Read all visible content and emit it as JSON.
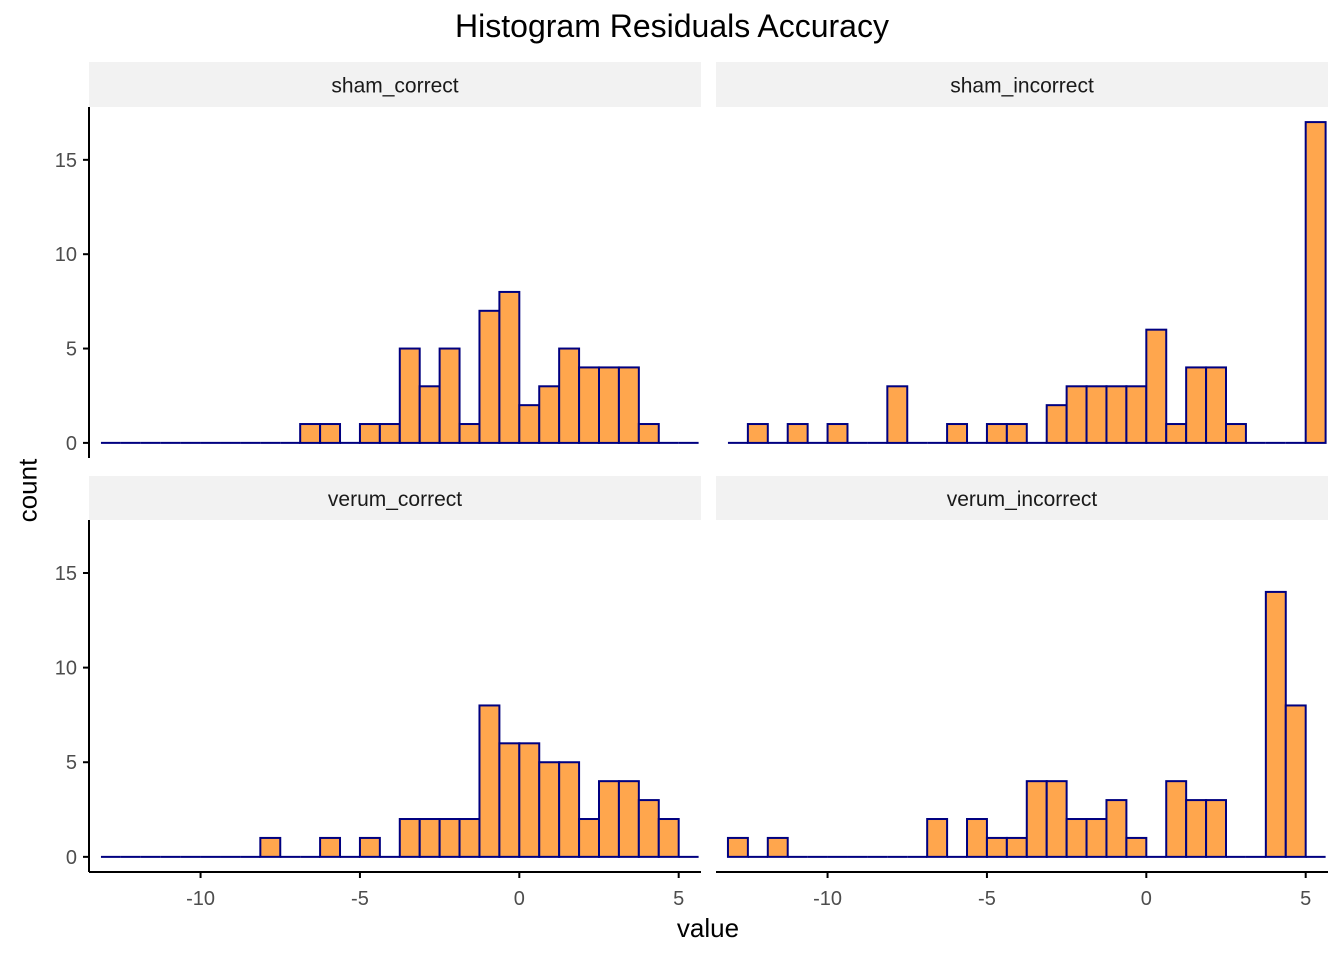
{
  "chart_data": {
    "type": "bar",
    "title": "Histogram Residuals Accuracy",
    "xlabel": "value",
    "ylabel": "count",
    "xlim": [
      -13.5,
      5.7
    ],
    "ylim": [
      -0.8,
      17.8
    ],
    "x_ticks": [
      -10,
      -5,
      0,
      5
    ],
    "y_ticks": [
      0,
      5,
      10,
      15
    ],
    "bin_width": 0.625,
    "bin_centers": [
      -12.8125,
      -12.1875,
      -11.5625,
      -10.9375,
      -10.3125,
      -9.6875,
      -9.0625,
      -8.4375,
      -7.8125,
      -7.1875,
      -6.5625,
      -5.9375,
      -5.3125,
      -4.6875,
      -4.0625,
      -3.4375,
      -2.8125,
      -2.1875,
      -1.5625,
      -0.9375,
      -0.3125,
      0.3125,
      0.9375,
      1.5625,
      2.1875,
      2.8125,
      3.4375,
      4.0625,
      4.6875,
      5.3125
    ],
    "colors": {
      "bar_fill": "#FFA64D",
      "bar_stroke": "#000080",
      "strip_bg": "#F2F2F2",
      "axis": "#000000",
      "tick_text": "#4D4D4D"
    },
    "grid": false,
    "panels": [
      {
        "name": "sham_correct",
        "counts": [
          0,
          0,
          0,
          0,
          0,
          0,
          0,
          0,
          0,
          0,
          1,
          1,
          0,
          1,
          1,
          5,
          3,
          5,
          1,
          7,
          8,
          2,
          3,
          5,
          4,
          4,
          4,
          1,
          0,
          0
        ]
      },
      {
        "name": "sham_incorrect",
        "counts": [
          0,
          1,
          0,
          1,
          0,
          1,
          0,
          0,
          3,
          0,
          0,
          1,
          0,
          1,
          1,
          0,
          2,
          3,
          3,
          3,
          3,
          6,
          1,
          4,
          4,
          1,
          0,
          0,
          0,
          17
        ]
      },
      {
        "name": "verum_correct",
        "counts": [
          0,
          0,
          0,
          0,
          0,
          0,
          0,
          0,
          1,
          0,
          0,
          1,
          0,
          1,
          0,
          2,
          2,
          2,
          2,
          8,
          6,
          6,
          5,
          5,
          2,
          4,
          4,
          3,
          2,
          0
        ]
      },
      {
        "name": "verum_incorrect",
        "counts": [
          1,
          0,
          1,
          0,
          0,
          0,
          0,
          0,
          0,
          0,
          2,
          0,
          2,
          1,
          1,
          4,
          4,
          2,
          2,
          3,
          1,
          0,
          4,
          3,
          3,
          0,
          0,
          14,
          8,
          0
        ]
      }
    ]
  }
}
